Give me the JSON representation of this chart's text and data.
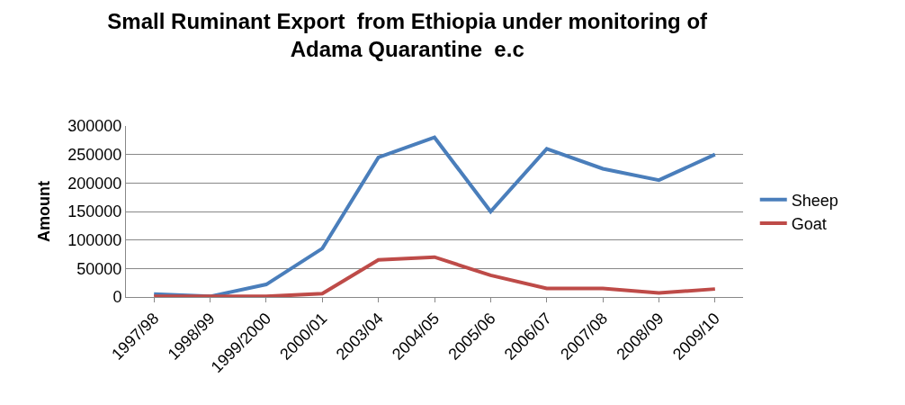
{
  "chart_data": {
    "type": "line",
    "title": "Small Ruminant Export  from Ethiopia under monitoring of Adama Quarantine  e.c",
    "ylabel": "Amount",
    "categories": [
      "1997/98",
      "1998/99",
      "1999/2000",
      "2000/01",
      "2003/04",
      "2004/05",
      "2005/06",
      "2006/07",
      "2007/08",
      "2008/09",
      "2009/10"
    ],
    "series": [
      {
        "name": "Sheep",
        "color": "#4a7ebb",
        "values": [
          5000,
          1000,
          22000,
          85000,
          245000,
          280000,
          150000,
          260000,
          225000,
          205000,
          250000
        ]
      },
      {
        "name": "Goat",
        "color": "#be4b48",
        "values": [
          1000,
          1000,
          1000,
          6000,
          65000,
          70000,
          38000,
          15000,
          15000,
          7000,
          14000
        ]
      }
    ],
    "ylim": [
      0,
      300000
    ],
    "yticks": [
      0,
      50000,
      100000,
      150000,
      200000,
      250000,
      300000
    ],
    "grid": "y",
    "legend": "right",
    "marker": "none",
    "line_style": "solid"
  }
}
